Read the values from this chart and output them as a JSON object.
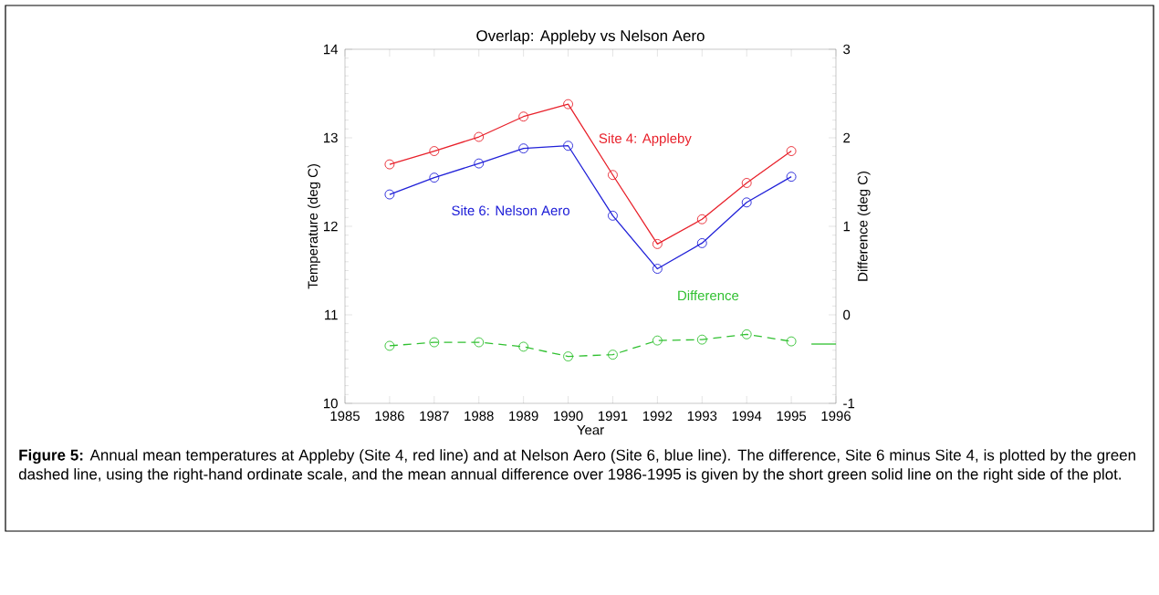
{
  "chart_data": {
    "type": "line",
    "title": "Overlap: Appleby vs Nelson Aero",
    "xlabel": "Year",
    "ylabel": "Temperature (deg C)",
    "y2label": "Difference (deg C)",
    "x": [
      1986,
      1987,
      1988,
      1989,
      1990,
      1991,
      1992,
      1993,
      1994,
      1995
    ],
    "series": [
      {
        "name": "Site 4: Appleby",
        "color": "#e8202a",
        "values": [
          12.7,
          12.85,
          13.01,
          13.24,
          13.38,
          12.58,
          11.8,
          12.08,
          12.49,
          12.85
        ]
      },
      {
        "name": "Site 6: Nelson Aero",
        "color": "#2020d8",
        "values": [
          12.36,
          12.55,
          12.71,
          12.88,
          12.91,
          12.12,
          11.52,
          11.81,
          12.27,
          12.56
        ]
      },
      {
        "name": "Difference",
        "color": "#30c030",
        "axis": "y2",
        "line_style": "dashed",
        "values": [
          -0.35,
          -0.31,
          -0.31,
          -0.36,
          -0.47,
          -0.45,
          -0.29,
          -0.28,
          -0.22,
          -0.3
        ]
      },
      {
        "color": "#30c030",
        "axis": "y2",
        "line_style": "solid",
        "marker": "none",
        "x": [
          1995.45,
          1996
        ],
        "values": [
          -0.33,
          -0.33
        ]
      }
    ],
    "xlim": [
      1985,
      1996
    ],
    "xticks": [
      1985,
      1986,
      1987,
      1988,
      1989,
      1990,
      1991,
      1992,
      1993,
      1994,
      1995,
      1996
    ],
    "ylim": [
      10,
      14
    ],
    "yticks": [
      10,
      11,
      12,
      13,
      14
    ],
    "y2lim": [
      -1,
      3
    ],
    "y2ticks": [
      -1,
      0,
      1,
      2,
      3
    ],
    "marker": "circle",
    "line_style": "solid",
    "grid": false,
    "annotations": [
      "**Figure 5:** Annual mean temperatures at Appleby (Site 4, red line) and at Nelson Aero (Site 6, blue line). The difference, Site 6 minus Site 4, is plotted by the green dashed line, using the right-hand ordinate scale, and the mean annual difference over 1986-1995 is given by the short green solid line on the right side of the plot."
    ]
  }
}
